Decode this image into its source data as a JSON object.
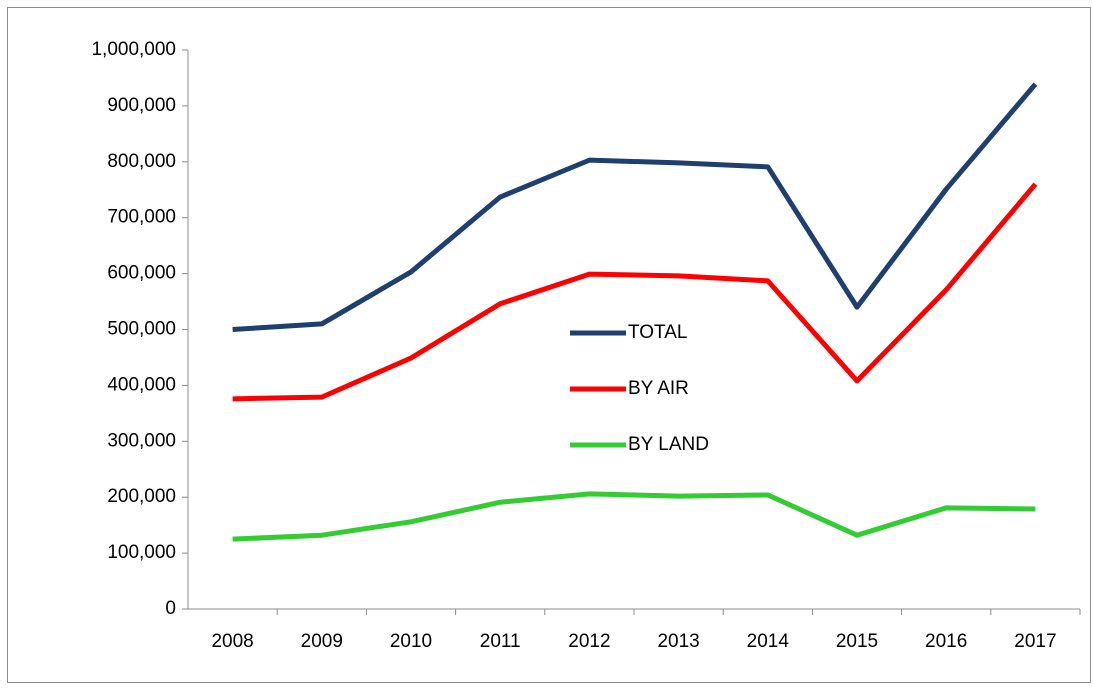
{
  "chart_data": {
    "type": "line",
    "categories": [
      "2008",
      "2009",
      "2010",
      "2011",
      "2012",
      "2013",
      "2014",
      "2015",
      "2016",
      "2017"
    ],
    "series": [
      {
        "name": "TOTAL",
        "color": "#1f3f6e",
        "values": [
          500000,
          510000,
          603000,
          737000,
          803000,
          798000,
          791000,
          540000,
          751000,
          939000
        ]
      },
      {
        "name": "BY AIR",
        "color": "#ff0000",
        "values": [
          376000,
          379000,
          449000,
          546000,
          599000,
          596000,
          587000,
          408000,
          571000,
          760000
        ]
      },
      {
        "name": "BY LAND",
        "color": "#33cc33",
        "values": [
          125000,
          132000,
          156000,
          191000,
          206000,
          202000,
          204000,
          132000,
          181000,
          179000
        ]
      }
    ],
    "ylim": [
      0,
      1000000
    ],
    "yticks": [
      0,
      {
        "value": 100000,
        "label": "100,000"
      },
      {
        "value": 200000,
        "label": "200,000"
      },
      {
        "value": 300000,
        "label": "300,000"
      },
      {
        "value": 400000,
        "label": "400,000"
      },
      {
        "value": 500000,
        "label": "500,000"
      },
      {
        "value": 600000,
        "label": "600,000"
      },
      {
        "value": 700000,
        "label": "700,000"
      },
      {
        "value": 800000,
        "label": "800,000"
      },
      {
        "value": 900000,
        "label": "900,000"
      },
      {
        "value": 1000000,
        "label": "1,000,000"
      }
    ],
    "grid": false,
    "legend": "center"
  }
}
